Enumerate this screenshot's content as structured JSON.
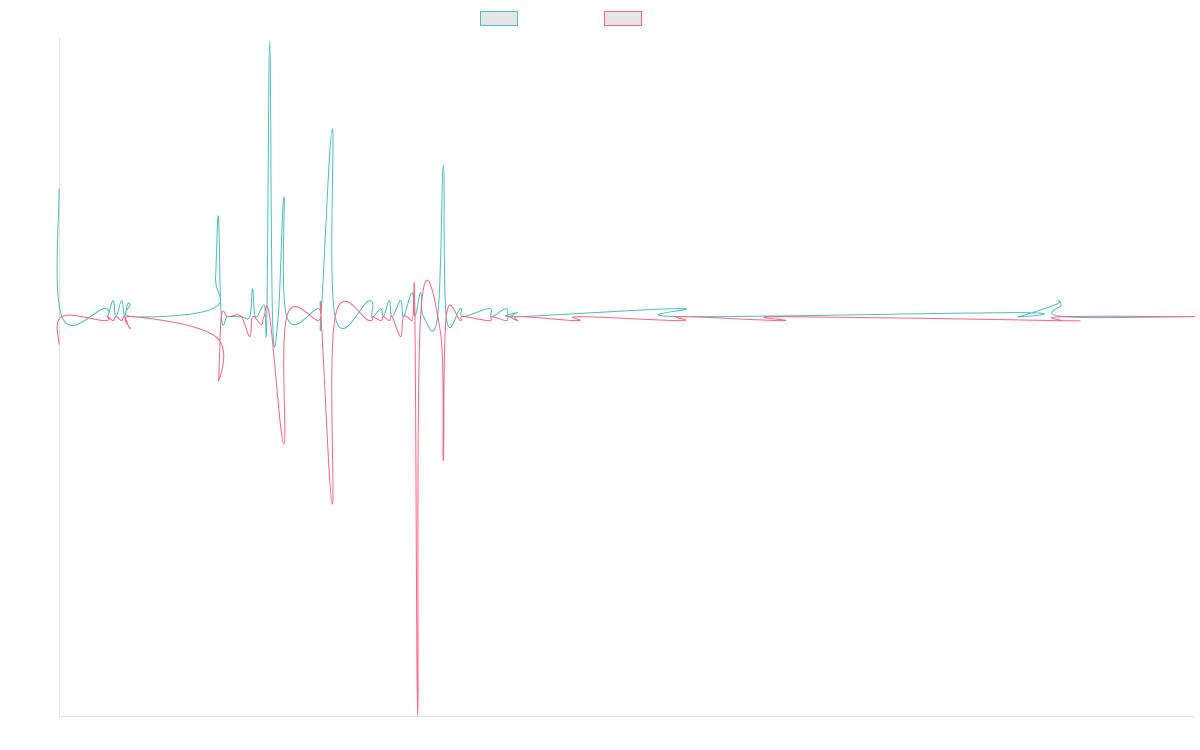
{
  "chart_data": {
    "type": "line",
    "title": "",
    "xlabel": "",
    "ylabel": "",
    "grid": false,
    "legend_position": "top-center",
    "ylim": [
      -100,
      70
    ],
    "x_count": 400,
    "series": [
      {
        "name": "",
        "color": "#4bc0c0",
        "points": [
          [
            0,
            32
          ],
          [
            1,
            0
          ],
          [
            16,
            2
          ],
          [
            17,
            0
          ],
          [
            19,
            4
          ],
          [
            20,
            0
          ],
          [
            22,
            4
          ],
          [
            23,
            0
          ],
          [
            24,
            3
          ],
          [
            25,
            3
          ],
          [
            26,
            0
          ],
          [
            54,
            2
          ],
          [
            55,
            10
          ],
          [
            56,
            25
          ],
          [
            57,
            0
          ],
          [
            59,
            0
          ],
          [
            60,
            0
          ],
          [
            64,
            0
          ],
          [
            67,
            0
          ],
          [
            68,
            7
          ],
          [
            69,
            0
          ],
          [
            72,
            3
          ],
          [
            73,
            0
          ],
          [
            74,
            69
          ],
          [
            75,
            0
          ],
          [
            77,
            0
          ],
          [
            79,
            30
          ],
          [
            80,
            0
          ],
          [
            91,
            2
          ],
          [
            92,
            0
          ],
          [
            96,
            47
          ],
          [
            97,
            0
          ],
          [
            109,
            4
          ],
          [
            110,
            0
          ],
          [
            113,
            2
          ],
          [
            114,
            0
          ],
          [
            116,
            4
          ],
          [
            117,
            0
          ],
          [
            120,
            4
          ],
          [
            121,
            0
          ],
          [
            124,
            6
          ],
          [
            125,
            0
          ],
          [
            127,
            6
          ],
          [
            128,
            0
          ],
          [
            133,
            0
          ],
          [
            135,
            38
          ],
          [
            136,
            0
          ],
          [
            141,
            2
          ],
          [
            142,
            0
          ],
          [
            151,
            2
          ],
          [
            152,
            0
          ],
          [
            157,
            2
          ],
          [
            158,
            0
          ],
          [
            161,
            1
          ],
          [
            162,
            0
          ],
          [
            218,
            2
          ],
          [
            219,
            0
          ],
          [
            336,
            1
          ],
          [
            337,
            0
          ],
          [
            350,
            3
          ],
          [
            351,
            4
          ],
          [
            352,
            3
          ],
          [
            353,
            0
          ],
          [
            399,
            0
          ]
        ]
      },
      {
        "name": "",
        "color": "#ff6384",
        "points": [
          [
            0,
            -7
          ],
          [
            1,
            0
          ],
          [
            16,
            -1
          ],
          [
            17,
            0
          ],
          [
            19,
            -1
          ],
          [
            20,
            0
          ],
          [
            22,
            -1
          ],
          [
            23,
            0
          ],
          [
            25,
            -3
          ],
          [
            26,
            0
          ],
          [
            55,
            -5
          ],
          [
            56,
            -16
          ],
          [
            57,
            0
          ],
          [
            59,
            0
          ],
          [
            60,
            0
          ],
          [
            64,
            0
          ],
          [
            67,
            -5
          ],
          [
            68,
            0
          ],
          [
            71,
            -2
          ],
          [
            72,
            0
          ],
          [
            74,
            0
          ],
          [
            79,
            -32
          ],
          [
            80,
            0
          ],
          [
            91,
            -1
          ],
          [
            92,
            0
          ],
          [
            96,
            -47
          ],
          [
            97,
            0
          ],
          [
            109,
            -1
          ],
          [
            110,
            0
          ],
          [
            113,
            -1
          ],
          [
            114,
            0
          ],
          [
            116,
            -1
          ],
          [
            117,
            0
          ],
          [
            120,
            -5
          ],
          [
            121,
            0
          ],
          [
            124,
            -1
          ],
          [
            125,
            0
          ],
          [
            126,
            -100
          ],
          [
            127,
            0
          ],
          [
            134,
            -4
          ],
          [
            135,
            -36
          ],
          [
            136,
            0
          ],
          [
            141,
            -1
          ],
          [
            142,
            0
          ],
          [
            151,
            -1
          ],
          [
            152,
            0
          ],
          [
            157,
            -1
          ],
          [
            158,
            0
          ],
          [
            161,
            -1
          ],
          [
            162,
            0
          ],
          [
            182,
            -1
          ],
          [
            183,
            0
          ],
          [
            218,
            -1
          ],
          [
            219,
            0
          ],
          [
            254,
            -1
          ],
          [
            255,
            0
          ],
          [
            350,
            -1
          ],
          [
            351,
            -1
          ],
          [
            352,
            -1
          ],
          [
            353,
            0
          ],
          [
            399,
            0
          ]
        ]
      }
    ]
  }
}
